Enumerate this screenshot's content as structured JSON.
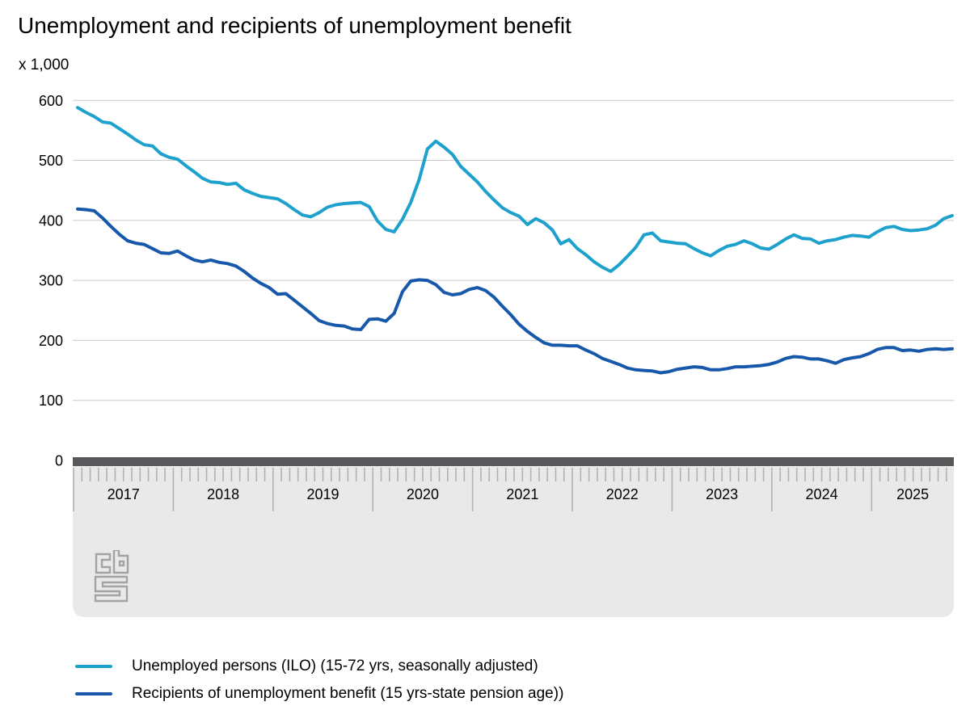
{
  "header": {
    "title": "Unemployment and recipients of unemployment benefit",
    "unit_label": "x 1,000"
  },
  "chart_data": {
    "type": "line",
    "title": "Unemployment and recipients of unemployment benefit",
    "unit": "x 1,000",
    "grid": true,
    "legend_position": "bottom-left",
    "y_axis": {
      "ticks": [
        0,
        100,
        200,
        300,
        400,
        500,
        600
      ],
      "range": [
        0,
        600
      ]
    },
    "x_axis": {
      "minor_tick": "month",
      "period": "Jan 2017 - Oct 2025",
      "year_labels": [
        "2017",
        "2018",
        "2019",
        "2020",
        "2021",
        "2022",
        "2023",
        "2024",
        "2025"
      ]
    },
    "series": [
      {
        "name": "Unemployed persons (ILO) (15-72 yrs, seasonally adjusted)",
        "color": "#1ea1cc",
        "values": [
          588,
          580,
          573,
          564,
          562,
          553,
          544,
          534,
          526,
          524,
          511,
          505,
          502,
          491,
          481,
          470,
          464,
          463,
          460,
          462,
          451,
          445,
          440,
          438,
          436,
          428,
          418,
          409,
          406,
          413,
          422,
          426,
          428,
          429,
          430,
          423,
          399,
          385,
          381,
          402,
          430,
          468,
          519,
          532,
          522,
          510,
          490,
          477,
          464,
          448,
          434,
          421,
          413,
          407,
          393,
          403,
          396,
          384,
          361,
          368,
          353,
          343,
          331,
          322,
          315,
          326,
          340,
          355,
          376,
          379,
          366,
          364,
          362,
          361,
          353,
          346,
          341,
          350,
          357,
          360,
          366,
          361,
          354,
          352,
          360,
          369,
          376,
          370,
          369,
          362,
          366,
          368,
          372,
          375,
          374,
          372,
          381,
          388,
          390,
          385,
          383,
          384,
          386,
          392,
          403,
          408
        ]
      },
      {
        "name": "Recipients of unemployment benefit (15 yrs-state pension age))",
        "color": "#1758ab",
        "values": [
          419,
          418,
          416,
          404,
          390,
          377,
          366,
          362,
          360,
          353,
          346,
          345,
          349,
          341,
          334,
          331,
          334,
          330,
          328,
          324,
          315,
          304,
          295,
          288,
          277,
          278,
          267,
          256,
          245,
          233,
          228,
          225,
          224,
          219,
          218,
          235,
          236,
          232,
          245,
          281,
          299,
          301,
          300,
          293,
          280,
          276,
          278,
          285,
          288,
          283,
          272,
          257,
          243,
          227,
          215,
          205,
          196,
          192,
          192,
          191,
          191,
          184,
          178,
          170,
          165,
          160,
          154,
          151,
          150,
          149,
          146,
          148,
          152,
          154,
          156,
          155,
          151,
          151,
          153,
          156,
          156,
          157,
          158,
          160,
          164,
          170,
          173,
          172,
          169,
          169,
          166,
          162,
          168,
          171,
          173,
          178,
          185,
          188,
          188,
          183,
          184,
          182,
          185,
          186,
          185,
          186
        ]
      }
    ],
    "style_colors": {
      "gridline": "#cacaca",
      "ruler_bar": "#58585a",
      "ruler_band": "#e9e9e9",
      "ruler_tick": "#b2b2b2",
      "logo_gray": "#a3a3a3"
    }
  },
  "branding": {
    "logo": "cbs-logo"
  }
}
